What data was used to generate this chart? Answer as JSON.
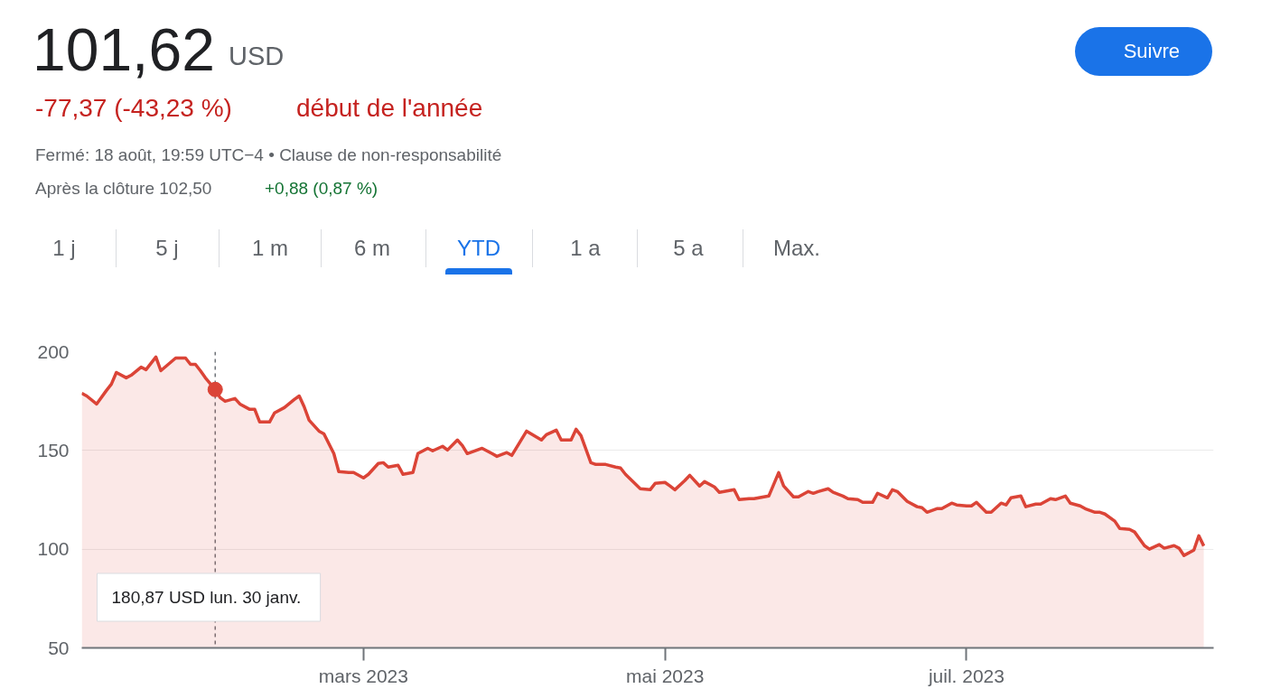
{
  "chart_data": {
    "type": "area",
    "title": "101,62",
    "annotations": [
      "USD",
      "-77,37 (-43,23 %)",
      "début de l'année",
      "Fermé: 18 août, 19:59 UTC−4 • Clause de non-responsabilité",
      "Après la clôture 102,50",
      "+0,88 (0,87 %)",
      "1 j",
      "5 j",
      "1 m",
      "6 m",
      "YTD",
      "1 a",
      "5 a",
      "Max.",
      "Suivre",
      "180,87 USD  lun. 30 janv."
    ],
    "series": [
      {
        "color": "#db4437",
        "x": [
          "2023-01-03",
          "2023-01-04",
          "2023-01-06",
          "2023-01-08",
          "2023-01-09",
          "2023-01-10",
          "2023-01-12",
          "2023-01-13",
          "2023-01-15",
          "2023-01-16",
          "2023-01-18",
          "2023-01-19",
          "2023-01-22",
          "2023-01-24",
          "2023-01-25",
          "2023-01-26",
          "2023-01-27",
          "2023-01-28",
          "2023-01-30",
          "2023-01-31",
          "2023-02-01",
          "2023-02-03",
          "2023-02-04",
          "2023-02-06",
          "2023-02-07",
          "2023-02-08",
          "2023-02-10",
          "2023-02-11",
          "2023-02-13",
          "2023-02-15",
          "2023-02-16",
          "2023-02-17",
          "2023-02-18",
          "2023-02-20",
          "2023-02-21",
          "2023-02-23",
          "2023-02-24",
          "2023-02-26",
          "2023-02-27",
          "2023-03-01",
          "2023-03-02",
          "2023-03-04",
          "2023-03-05",
          "2023-03-06",
          "2023-03-08",
          "2023-03-09",
          "2023-03-11",
          "2023-03-12",
          "2023-03-14",
          "2023-03-15",
          "2023-03-17",
          "2023-03-18",
          "2023-03-20",
          "2023-03-21",
          "2023-03-22",
          "2023-03-25",
          "2023-03-27",
          "2023-03-28",
          "2023-03-30",
          "2023-03-31",
          "2023-04-03",
          "2023-04-06",
          "2023-04-07",
          "2023-04-09",
          "2023-04-10",
          "2023-04-12",
          "2023-04-13",
          "2023-04-14",
          "2023-04-16",
          "2023-04-17",
          "2023-04-19",
          "2023-04-21",
          "2023-04-22",
          "2023-04-23",
          "2023-04-26",
          "2023-04-28",
          "2023-04-29",
          "2023-05-01",
          "2023-05-02",
          "2023-05-03",
          "2023-05-05",
          "2023-05-06",
          "2023-05-08",
          "2023-05-09",
          "2023-05-11",
          "2023-05-12",
          "2023-05-14",
          "2023-05-15",
          "2023-05-16",
          "2023-05-18",
          "2023-05-19",
          "2023-05-21",
          "2023-05-22",
          "2023-05-24",
          "2023-05-25",
          "2023-05-27",
          "2023-05-28",
          "2023-05-30",
          "2023-05-31",
          "2023-06-01",
          "2023-06-03",
          "2023-06-04",
          "2023-06-06",
          "2023-06-07",
          "2023-06-09",
          "2023-06-10",
          "2023-06-12",
          "2023-06-13",
          "2023-06-15",
          "2023-06-16",
          "2023-06-17",
          "2023-06-19",
          "2023-06-21",
          "2023-06-22",
          "2023-06-23",
          "2023-06-25",
          "2023-06-26",
          "2023-06-28",
          "2023-06-29",
          "2023-07-01",
          "2023-07-02",
          "2023-07-03",
          "2023-07-05",
          "2023-07-06",
          "2023-07-08",
          "2023-07-09",
          "2023-07-10",
          "2023-07-12",
          "2023-07-13",
          "2023-07-15",
          "2023-07-16",
          "2023-07-18",
          "2023-07-19",
          "2023-07-21",
          "2023-07-22",
          "2023-07-24",
          "2023-07-25",
          "2023-07-27",
          "2023-07-28",
          "2023-07-29",
          "2023-07-31",
          "2023-08-01",
          "2023-08-03",
          "2023-08-04",
          "2023-08-06",
          "2023-08-07",
          "2023-08-09",
          "2023-08-10",
          "2023-08-12",
          "2023-08-13",
          "2023-08-14",
          "2023-08-16",
          "2023-08-17",
          "2023-08-18"
        ],
        "values": [
          179.0,
          177.6,
          173.5,
          180.4,
          183.6,
          189.5,
          186.8,
          188.1,
          192.2,
          190.9,
          197.3,
          190.4,
          196.8,
          196.8,
          193.6,
          193.6,
          190.4,
          186.8,
          180.87,
          176.7,
          174.9,
          176.3,
          173.5,
          170.8,
          170.8,
          164.4,
          164.4,
          169.0,
          171.7,
          175.8,
          177.6,
          172.1,
          165.3,
          159.8,
          158.4,
          148.4,
          139.3,
          138.8,
          138.8,
          136.1,
          137.9,
          143.4,
          143.8,
          141.6,
          142.5,
          137.9,
          138.8,
          148.4,
          151.1,
          149.8,
          152.1,
          150.2,
          155.3,
          152.5,
          148.4,
          151.1,
          148.4,
          147.0,
          148.9,
          147.5,
          159.8,
          155.3,
          158.0,
          160.3,
          155.3,
          155.3,
          160.7,
          157.5,
          143.8,
          142.9,
          142.9,
          141.6,
          141.1,
          137.9,
          130.6,
          130.1,
          133.3,
          133.8,
          132.0,
          130.1,
          134.7,
          137.4,
          132.0,
          134.2,
          131.5,
          128.8,
          129.7,
          130.1,
          125.1,
          125.6,
          125.6,
          126.5,
          126.9,
          138.8,
          132.0,
          126.5,
          126.5,
          129.2,
          128.3,
          129.2,
          130.6,
          128.8,
          126.9,
          125.6,
          125.1,
          123.7,
          123.7,
          128.3,
          126.0,
          130.1,
          129.2,
          124.2,
          121.5,
          121.0,
          118.7,
          120.5,
          120.5,
          123.3,
          122.4,
          121.9,
          121.9,
          123.7,
          118.7,
          118.7,
          123.3,
          122.4,
          126.0,
          126.9,
          121.5,
          122.8,
          122.8,
          125.6,
          125.1,
          126.9,
          123.3,
          121.9,
          120.5,
          118.7,
          118.7,
          117.8,
          114.2,
          110.5,
          110.0,
          108.7,
          101.8,
          100.0,
          102.3,
          100.5,
          101.8,
          100.5,
          96.8,
          99.5,
          106.8,
          101.62
        ]
      },
      {
        "type": "scatter",
        "marker": "circle",
        "color": "#db4437",
        "x": [
          "2023-01-30"
        ],
        "values": [
          180.87
        ]
      }
    ],
    "xlim": [
      "2023-01-03",
      "2023-08-20"
    ],
    "xticks": [
      {
        "value": "2023-03-01",
        "label": "mars 2023"
      },
      {
        "value": "2023-05-01",
        "label": "mai 2023"
      },
      {
        "value": "2023-07-01",
        "label": "juil. 2023"
      }
    ],
    "ylim": [
      50,
      200
    ],
    "yticks": [
      50,
      100,
      150,
      200
    ],
    "grid": "y",
    "ref_lines": [
      {
        "axis": "x",
        "value": "2023-01-30",
        "label": null,
        "color": "#70757a",
        "line_style": "dashed"
      }
    ]
  }
}
